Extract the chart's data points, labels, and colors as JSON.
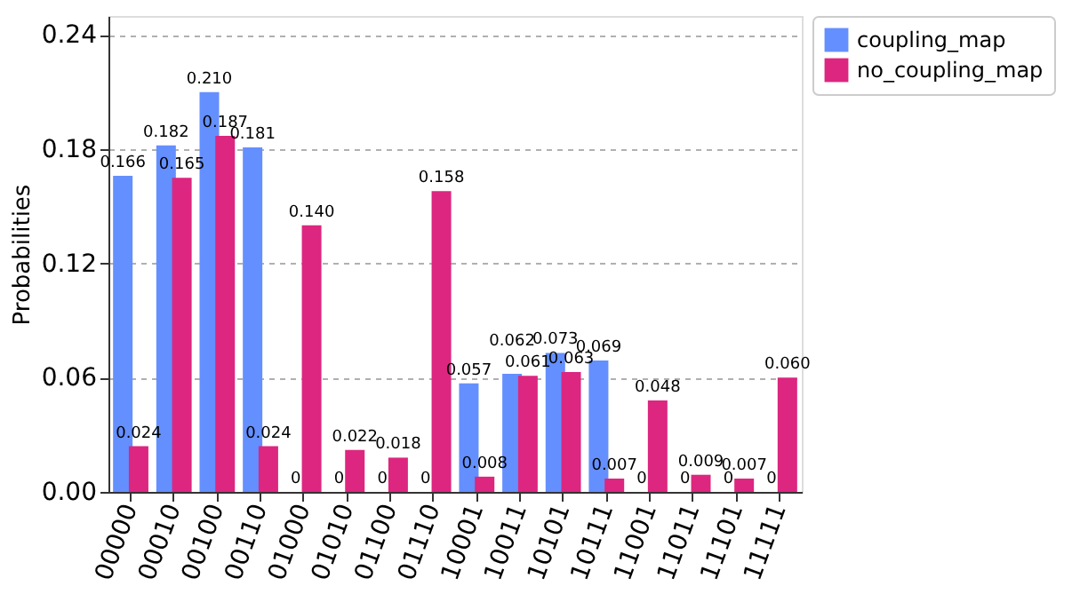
{
  "chart_data": {
    "type": "bar",
    "ylabel": "Probabilities",
    "categories": [
      "00000",
      "00010",
      "00100",
      "00110",
      "01000",
      "01010",
      "01100",
      "01110",
      "10001",
      "10011",
      "10101",
      "10111",
      "11001",
      "11011",
      "11101",
      "11111"
    ],
    "series": [
      {
        "name": "coupling_map",
        "color": "#648fff",
        "values": [
          0.166,
          0.182,
          0.21,
          0.181,
          0,
          0,
          0,
          0,
          0.057,
          0.062,
          0.073,
          0.069,
          0,
          0,
          0,
          0
        ],
        "value_labels": [
          "0.166",
          "0.182",
          "0.210",
          "0.181",
          "0",
          "0",
          "0",
          "0",
          "0.057",
          "0.062",
          "0.073",
          "0.069",
          "0",
          "0",
          "0",
          "0"
        ]
      },
      {
        "name": "no_coupling_map",
        "color": "#dc267f",
        "values": [
          0.024,
          0.165,
          0.187,
          0.024,
          0.14,
          0.022,
          0.018,
          0.158,
          0.008,
          0.061,
          0.063,
          0.007,
          0.048,
          0.009,
          0.007,
          0.06
        ],
        "value_labels": [
          "0.024",
          "0.165",
          "0.187",
          "0.024",
          "0.140",
          "0.022",
          "0.018",
          "0.158",
          "0.008",
          "0.061",
          "0.063",
          "0.007",
          "0.048",
          "0.009",
          "0.007",
          "0.060"
        ]
      }
    ],
    "ylim": [
      0,
      0.25
    ],
    "yticks": [
      {
        "value": 0,
        "label": "0.00"
      },
      {
        "value": 0.06,
        "label": "0.06"
      },
      {
        "value": 0.12,
        "label": "0.12"
      },
      {
        "value": 0.18,
        "label": "0.18"
      },
      {
        "value": 0.24,
        "label": "0.24"
      }
    ],
    "grid": "y",
    "legend": "top right"
  }
}
